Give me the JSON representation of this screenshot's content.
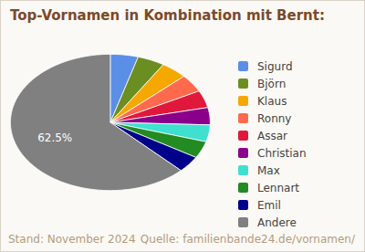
{
  "chart_data": {
    "type": "pie",
    "title": "Top-Vornamen in Kombination mit Bernt:",
    "categories": [
      "Sigurd",
      "Björn",
      "Klaus",
      "Ronny",
      "Assar",
      "Christian",
      "Max",
      "Lennart",
      "Emil",
      "Andere"
    ],
    "values": [
      4.5,
      4.4,
      4.3,
      4.2,
      4.1,
      4.1,
      4.0,
      4.0,
      3.9,
      62.5
    ],
    "value_labels": [
      null,
      null,
      null,
      null,
      null,
      null,
      null,
      null,
      null,
      "62.5%"
    ],
    "colors": [
      "#5b8ee6",
      "#6b8e23",
      "#f5a800",
      "#ff6a4d",
      "#e0183c",
      "#8b008b",
      "#3fe0d0",
      "#228b22",
      "#00008b",
      "#808080"
    ],
    "legend": "right",
    "caption": "Stand: November 2024",
    "source": "Quelle: familienbande24.de/vornamen/"
  }
}
